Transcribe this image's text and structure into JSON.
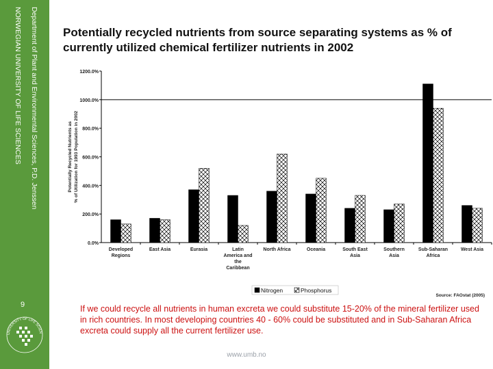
{
  "sidebar": {
    "department": "Department of Plant and Environmental Sciences, P.D. Jenssen",
    "university": "NORWEGIAN UNIVERSITY OF LIFE SCIENCES",
    "slide_number": "9",
    "logo_text": "UNIVERSITY OF LIFE SCIENCES"
  },
  "slide_title": "Potentially recycled nutrients from source separating systems as % of currently utilized chemical fertilizer nutrients in 2002",
  "caption": "If we could recycle all nutrients in human excreta we could substitute 15-20% of the mineral fertilizer used in rich countries. In most developing countries 40 - 60% could be substituted and in Sub-Saharan Africa excreta could supply all the current fertilizer use.",
  "footer_url": "www.umb.no",
  "chart_data": {
    "type": "bar",
    "ylabel_lines": [
      "Potentially Recycled Nutrients as",
      "% of Utilization for 1993 Population in 2002"
    ],
    "ylim": [
      0,
      1200
    ],
    "yticks": [
      0,
      200,
      400,
      600,
      800,
      1000,
      1200
    ],
    "ytick_labels": [
      "0.0%",
      "200.0%",
      "400.0%",
      "600.0%",
      "800.0%",
      "1000.0%",
      "1200.0%"
    ],
    "reference_line": 1000,
    "categories": [
      [
        "Developed",
        "Regions"
      ],
      [
        "East Asia"
      ],
      [
        "Eurasia"
      ],
      [
        "Latin",
        "America and",
        "the",
        "Caribbean"
      ],
      [
        "North Africa"
      ],
      [
        "Oceania"
      ],
      [
        "South East",
        "Asia"
      ],
      [
        "Southern",
        "Asia"
      ],
      [
        "Sub-Saharan",
        "Africa"
      ],
      [
        "West Asia"
      ]
    ],
    "series": [
      {
        "name": "Nitrogen",
        "values": [
          160,
          170,
          370,
          330,
          360,
          340,
          240,
          230,
          1110,
          260
        ],
        "color": "#000000"
      },
      {
        "name": "Phosphorus",
        "values": [
          130,
          160,
          520,
          120,
          620,
          450,
          330,
          270,
          940,
          240
        ],
        "color": "#ffffff"
      }
    ],
    "legend_position": "bottom-center",
    "source": "Source: FAOstat (2005)"
  }
}
